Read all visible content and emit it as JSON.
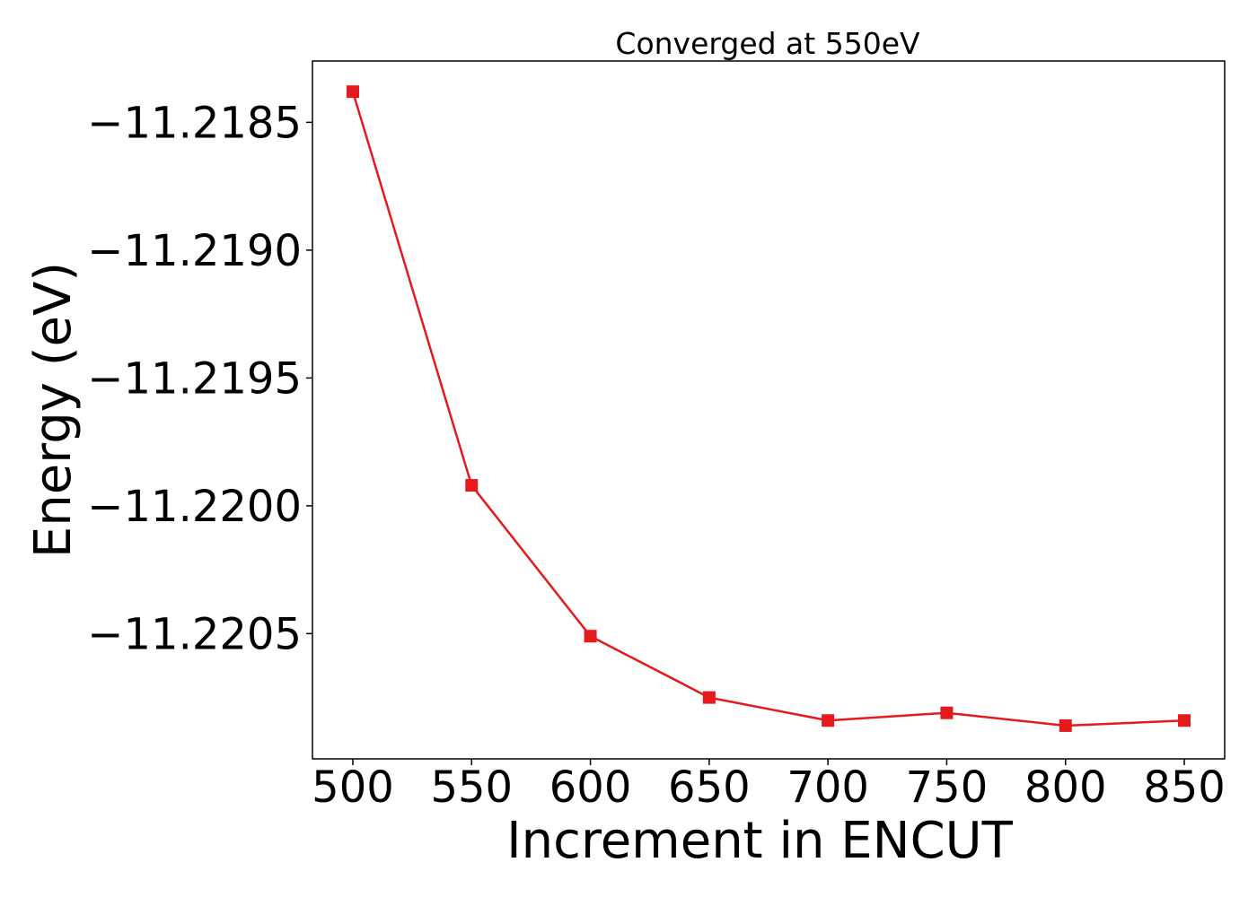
{
  "chart_data": {
    "type": "line",
    "title": "Converged at 550eV",
    "xlabel": "Increment in ENCUT",
    "ylabel": "Energy (eV)",
    "x": [
      500,
      550,
      600,
      650,
      700,
      750,
      800,
      850
    ],
    "series": [
      {
        "values": [
          -11.21838,
          -11.21992,
          -11.22051,
          -11.22075,
          -11.22084,
          -11.22081,
          -11.22086,
          -11.22084
        ],
        "color": "#e41a1c",
        "marker": "square"
      }
    ],
    "xticks": [
      500,
      550,
      600,
      650,
      700,
      750,
      800,
      850
    ],
    "xtick_labels": [
      "500",
      "550",
      "600",
      "650",
      "700",
      "750",
      "800",
      "850"
    ],
    "yticks": [
      -11.2185,
      -11.219,
      -11.2195,
      -11.22,
      -11.2205
    ],
    "ytick_labels": [
      "−11.2185",
      "−11.2190",
      "−11.2195",
      "−11.2200",
      "−11.2205"
    ],
    "xlim": [
      483,
      867
    ],
    "ylim": [
      -11.22099,
      -11.21826
    ],
    "grid": false,
    "legend": "none"
  }
}
